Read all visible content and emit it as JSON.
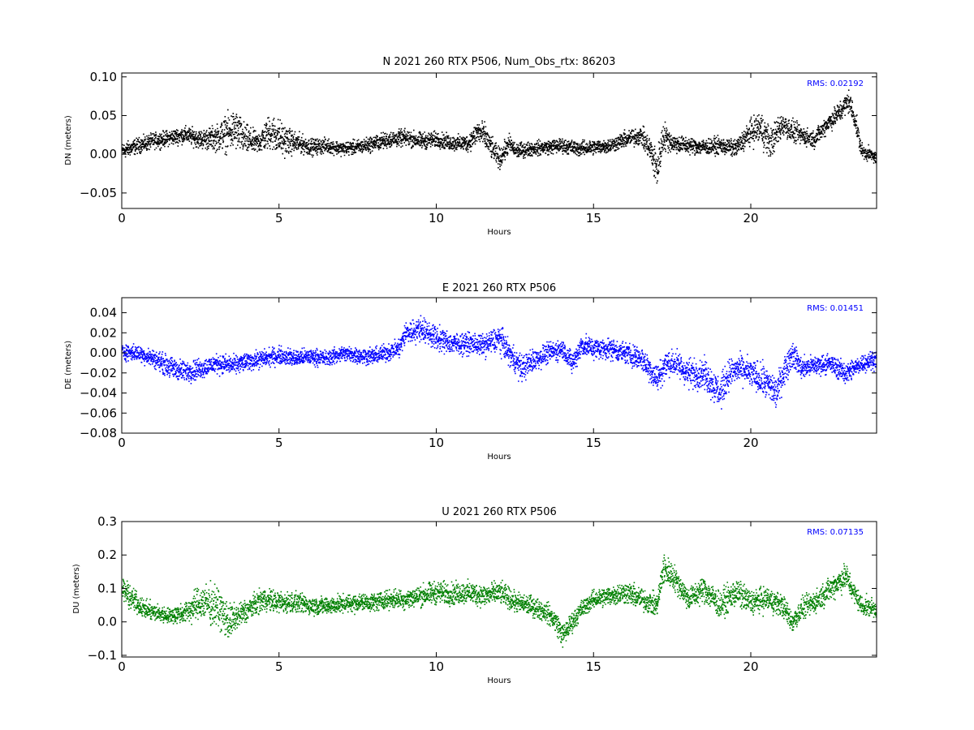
{
  "chart_data": [
    {
      "type": "scatter",
      "title": "N 2021 260 RTX  P506, Num_Obs_rtx: 86203",
      "xlabel": "Hours",
      "ylabel": "DN (meters)",
      "xlim": [
        0,
        24
      ],
      "ylim": [
        -0.07,
        0.105
      ],
      "xticks": [
        "0",
        "5",
        "10",
        "15",
        "20"
      ],
      "yticks": [
        "0.10",
        "0.05",
        "0.00",
        "−0.05"
      ],
      "grid": false,
      "color": "#000000",
      "rms_label": "RMS:  0.02192",
      "series": [
        {
          "x": [
            0,
            0.5,
            1,
            1.5,
            2,
            2.5,
            3,
            3.3,
            3.6,
            3.9,
            4.3,
            4.7,
            5,
            5.3,
            5.7,
            6,
            6.5,
            7,
            7.5,
            8,
            8.5,
            9,
            9.5,
            10,
            10.5,
            11,
            11.3,
            11.5,
            11.8,
            12,
            12.3,
            12.5,
            13,
            13.5,
            14,
            14.5,
            15,
            15.5,
            16,
            16.5,
            16.8,
            17,
            17.2,
            17.5,
            18,
            18.5,
            19,
            19.5,
            20,
            20.3,
            20.6,
            21,
            21.3,
            21.6,
            22,
            22.4,
            22.8,
            23.1,
            23.3,
            23.5,
            23.8,
            24
          ],
          "y": [
            0.005,
            0.012,
            0.018,
            0.022,
            0.026,
            0.02,
            0.022,
            0.028,
            0.032,
            0.02,
            0.015,
            0.03,
            0.022,
            0.017,
            0.014,
            0.01,
            0.012,
            0.008,
            0.01,
            0.015,
            0.02,
            0.022,
            0.018,
            0.02,
            0.015,
            0.015,
            0.03,
            0.025,
            0.005,
            -0.005,
            0.015,
            0.005,
            0.008,
            0.01,
            0.012,
            0.008,
            0.01,
            0.012,
            0.02,
            0.025,
            0.005,
            -0.02,
            0.025,
            0.015,
            0.012,
            0.01,
            0.012,
            0.008,
            0.03,
            0.035,
            0.015,
            0.04,
            0.03,
            0.025,
            0.02,
            0.04,
            0.055,
            0.07,
            0.045,
            0.005,
            0.0,
            -0.005
          ],
          "spread": [
            0.015,
            0.015,
            0.015,
            0.015,
            0.016,
            0.018,
            0.025,
            0.035,
            0.04,
            0.03,
            0.02,
            0.035,
            0.035,
            0.025,
            0.018,
            0.016,
            0.014,
            0.013,
            0.014,
            0.015,
            0.016,
            0.016,
            0.016,
            0.015,
            0.015,
            0.016,
            0.025,
            0.025,
            0.02,
            0.02,
            0.018,
            0.015,
            0.014,
            0.014,
            0.014,
            0.014,
            0.014,
            0.014,
            0.016,
            0.018,
            0.025,
            0.04,
            0.03,
            0.018,
            0.016,
            0.015,
            0.016,
            0.016,
            0.025,
            0.035,
            0.03,
            0.025,
            0.022,
            0.018,
            0.016,
            0.018,
            0.02,
            0.022,
            0.02,
            0.015,
            0.012,
            0.012
          ]
        }
      ]
    },
    {
      "type": "scatter",
      "title": "E 2021 260 RTX  P506",
      "xlabel": "Hours",
      "ylabel": "DE (meters)",
      "xlim": [
        0,
        24
      ],
      "ylim": [
        -0.08,
        0.055
      ],
      "xticks": [
        "0",
        "5",
        "10",
        "15",
        "20"
      ],
      "yticks": [
        "0.04",
        "0.02",
        "0.00",
        "−0.02",
        "−0.04",
        "−0.06",
        "−0.08"
      ],
      "grid": false,
      "color": "#0000ff",
      "rms_label": "RMS:  0.01451",
      "series": [
        {
          "x": [
            0,
            0.5,
            1,
            1.3,
            1.6,
            2,
            2.5,
            3,
            3.5,
            4,
            4.5,
            5,
            5.5,
            6,
            6.5,
            7,
            7.5,
            8,
            8.5,
            8.8,
            9,
            9.5,
            10,
            10.5,
            11,
            11.5,
            12,
            12.3,
            12.7,
            13,
            13.5,
            14,
            14.3,
            14.6,
            15,
            15.5,
            16,
            16.5,
            17,
            17.3,
            17.6,
            18,
            18.5,
            19,
            19.3,
            19.6,
            20,
            20.5,
            20.8,
            21,
            21.3,
            21.6,
            22,
            22.5,
            23,
            23.5,
            24
          ],
          "y": [
            0.002,
            0.0,
            -0.005,
            -0.01,
            -0.015,
            -0.018,
            -0.015,
            -0.01,
            -0.012,
            -0.008,
            -0.005,
            -0.002,
            -0.005,
            -0.003,
            -0.005,
            0.0,
            -0.002,
            -0.003,
            0.002,
            0.005,
            0.02,
            0.025,
            0.015,
            0.01,
            0.01,
            0.008,
            0.015,
            0.0,
            -0.015,
            -0.008,
            0.0,
            0.005,
            -0.01,
            0.008,
            0.005,
            0.005,
            0.0,
            -0.005,
            -0.025,
            -0.01,
            -0.01,
            -0.02,
            -0.02,
            -0.04,
            -0.02,
            -0.015,
            -0.02,
            -0.03,
            -0.04,
            -0.02,
            0.0,
            -0.015,
            -0.012,
            -0.01,
            -0.02,
            -0.01,
            -0.005
          ],
          "spread": [
            0.012,
            0.012,
            0.013,
            0.015,
            0.016,
            0.016,
            0.015,
            0.014,
            0.014,
            0.013,
            0.013,
            0.013,
            0.013,
            0.012,
            0.012,
            0.012,
            0.012,
            0.012,
            0.013,
            0.015,
            0.018,
            0.018,
            0.018,
            0.016,
            0.016,
            0.016,
            0.02,
            0.018,
            0.02,
            0.018,
            0.015,
            0.015,
            0.016,
            0.018,
            0.016,
            0.016,
            0.016,
            0.018,
            0.022,
            0.02,
            0.02,
            0.022,
            0.022,
            0.025,
            0.022,
            0.02,
            0.022,
            0.025,
            0.025,
            0.022,
            0.02,
            0.016,
            0.015,
            0.014,
            0.016,
            0.014,
            0.013
          ]
        }
      ]
    },
    {
      "type": "scatter",
      "title": "U 2021 260 RTX  P506",
      "xlabel": "Hours",
      "ylabel": "DU (meters)",
      "xlim": [
        0,
        24
      ],
      "ylim": [
        -0.105,
        0.3
      ],
      "xticks": [
        "0",
        "5",
        "10",
        "15",
        "20"
      ],
      "yticks": [
        "0.3",
        "0.2",
        "0.1",
        "0.0",
        "−0.1"
      ],
      "grid": false,
      "color": "#008000",
      "rms_label": "RMS:  0.07135",
      "series": [
        {
          "x": [
            0,
            0.3,
            0.7,
            1,
            1.5,
            2,
            2.5,
            3,
            3.4,
            3.7,
            4,
            4.5,
            5,
            5.5,
            6,
            6.5,
            7,
            7.5,
            8,
            8.5,
            9,
            9.5,
            10,
            10.5,
            11,
            11.5,
            12,
            12.5,
            13,
            13.5,
            13.8,
            14,
            14.3,
            14.6,
            15,
            15.5,
            16,
            16.5,
            17,
            17.2,
            17.5,
            18,
            18.5,
            19,
            19.5,
            20,
            20.5,
            21,
            21.3,
            21.6,
            22,
            22.5,
            23,
            23.2,
            23.5,
            24
          ],
          "y": [
            0.1,
            0.07,
            0.04,
            0.03,
            0.02,
            0.03,
            0.06,
            0.05,
            0.0,
            0.02,
            0.04,
            0.07,
            0.06,
            0.06,
            0.05,
            0.05,
            0.055,
            0.06,
            0.06,
            0.07,
            0.07,
            0.08,
            0.09,
            0.085,
            0.09,
            0.08,
            0.09,
            0.06,
            0.05,
            0.03,
            0.0,
            -0.04,
            0.0,
            0.04,
            0.07,
            0.08,
            0.09,
            0.07,
            0.05,
            0.16,
            0.14,
            0.07,
            0.1,
            0.05,
            0.09,
            0.06,
            0.07,
            0.05,
            0.0,
            0.04,
            0.06,
            0.1,
            0.14,
            0.1,
            0.05,
            0.04
          ],
          "spread": [
            0.06,
            0.05,
            0.04,
            0.04,
            0.035,
            0.05,
            0.08,
            0.09,
            0.08,
            0.06,
            0.05,
            0.05,
            0.05,
            0.045,
            0.04,
            0.04,
            0.04,
            0.04,
            0.04,
            0.04,
            0.045,
            0.05,
            0.05,
            0.05,
            0.05,
            0.05,
            0.05,
            0.045,
            0.045,
            0.045,
            0.05,
            0.05,
            0.045,
            0.04,
            0.04,
            0.045,
            0.05,
            0.05,
            0.05,
            0.07,
            0.06,
            0.05,
            0.06,
            0.06,
            0.06,
            0.055,
            0.055,
            0.05,
            0.05,
            0.05,
            0.05,
            0.055,
            0.06,
            0.05,
            0.045,
            0.04
          ]
        }
      ]
    }
  ]
}
